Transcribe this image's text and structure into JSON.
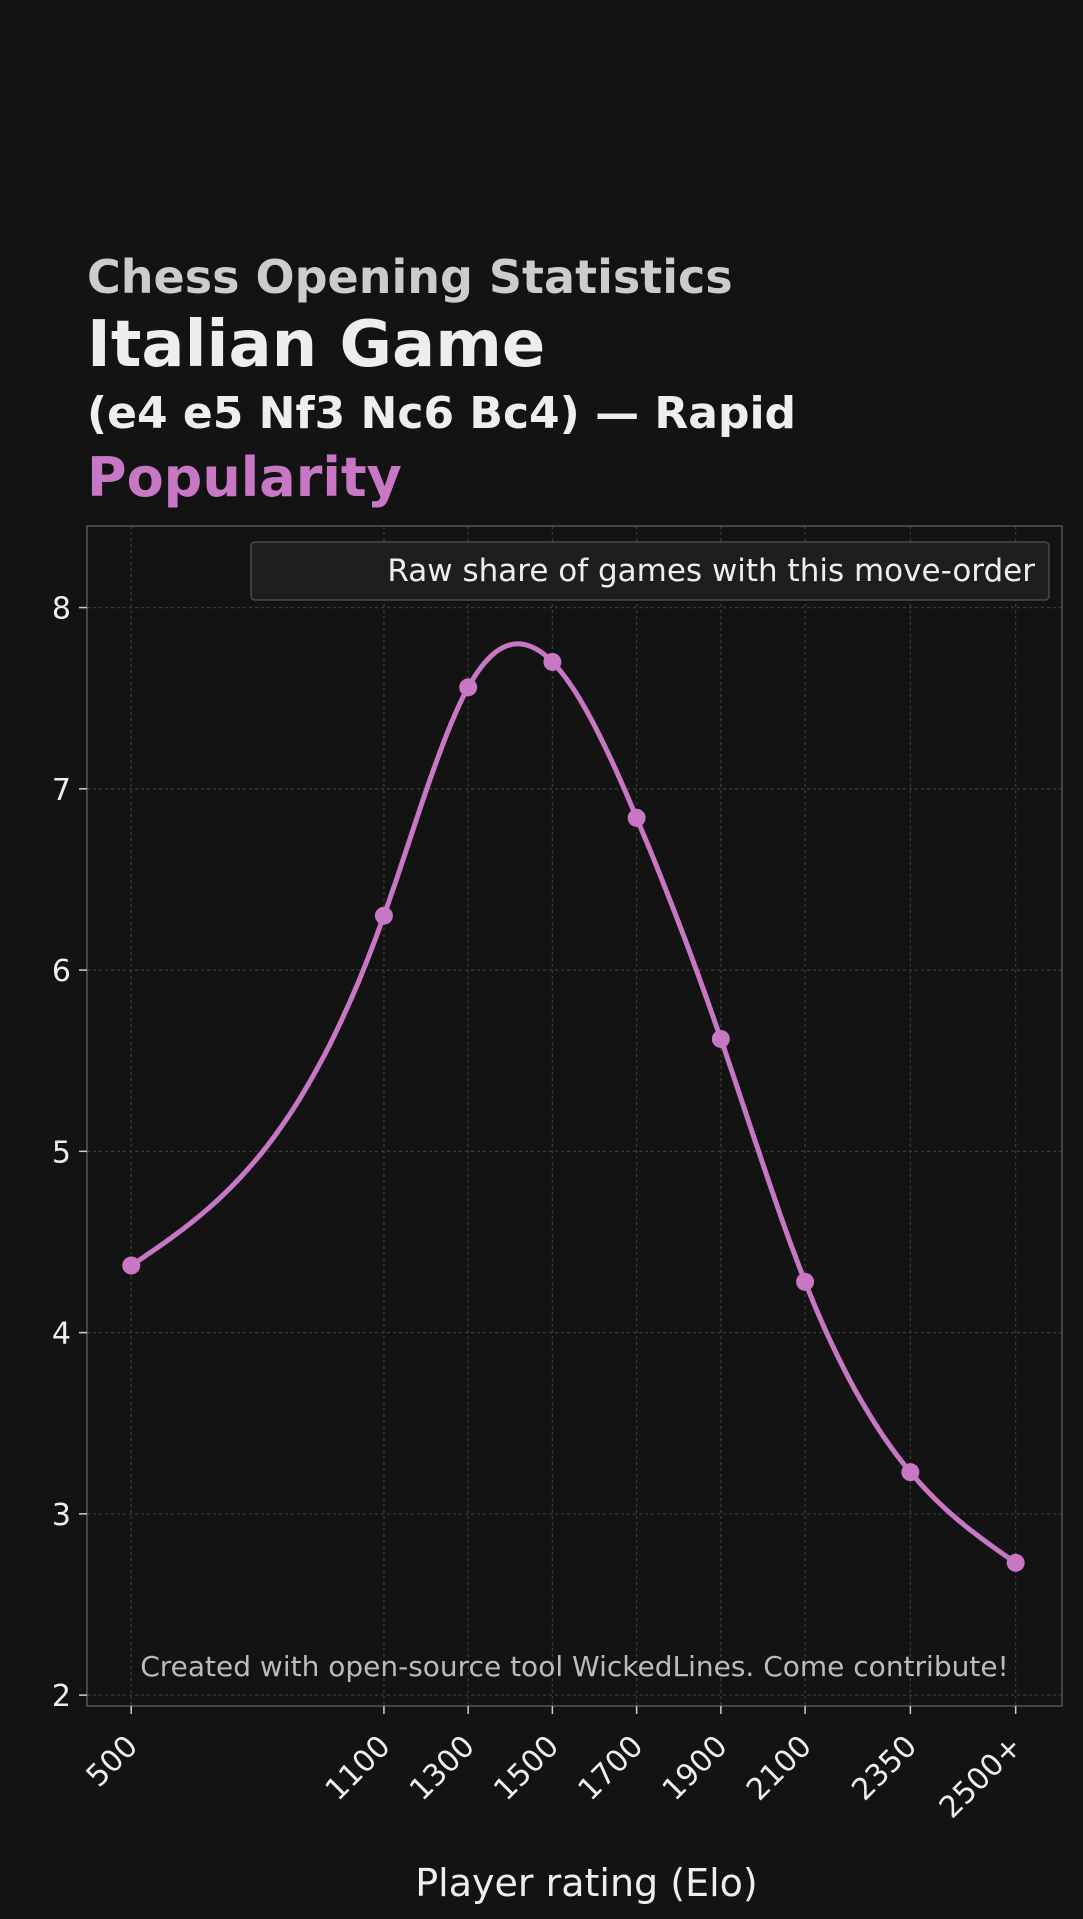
{
  "header": {
    "supertitle": "Chess Opening Statistics",
    "title": "Italian Game",
    "subtitle": "(e4 e5 Nf3 Nc6 Bc4) — Rapid",
    "metric": "Popularity"
  },
  "colors": {
    "background": "#131313",
    "accent": "#c777c4",
    "grid": "#3a3a3a",
    "text": "#eeeeee"
  },
  "chart_data": {
    "type": "line",
    "title": "Popularity",
    "xlabel": "Player rating (Elo)",
    "ylabel": "",
    "x": [
      500,
      1100,
      1300,
      1500,
      1700,
      1900,
      2100,
      2350,
      2600
    ],
    "xtick_labels": [
      "500",
      "1100",
      "1300",
      "1500",
      "1700",
      "1900",
      "2100",
      "2350",
      "2500+"
    ],
    "series": [
      {
        "name": "Raw share of games with this move-order",
        "values": [
          4.37,
          6.3,
          7.56,
          7.7,
          6.84,
          5.62,
          4.28,
          3.23,
          2.73
        ]
      }
    ],
    "xlim": [
      395,
      2710
    ],
    "ylim": [
      1.94,
      8.45
    ],
    "yticks": [
      2,
      3,
      4,
      5,
      6,
      7,
      8
    ],
    "grid": true,
    "legend": "top-right",
    "smooth": true,
    "annotation": "Created with open-source tool WickedLines. Come contribute!"
  }
}
